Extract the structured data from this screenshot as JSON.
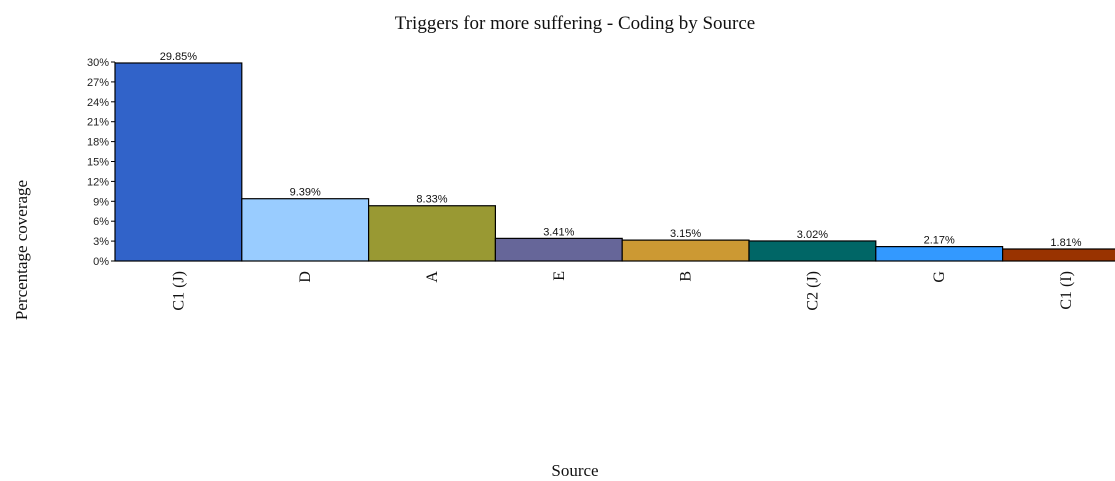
{
  "chart_data": {
    "type": "bar",
    "title": "Triggers for more suffering - Coding by Source",
    "xlabel": "Source",
    "ylabel": "Percentage coverage",
    "ylim": [
      0,
      30
    ],
    "yticks": [
      "0%",
      "3%",
      "6%",
      "9%",
      "12%",
      "15%",
      "18%",
      "21%",
      "24%",
      "27%",
      "30%"
    ],
    "grid": false,
    "categories": [
      "C1 (J)",
      "D",
      "A",
      "E",
      "B",
      "C2 (J)",
      "G",
      "C1 (I)"
    ],
    "values": [
      29.85,
      9.39,
      8.33,
      3.41,
      3.15,
      3.02,
      2.17,
      1.81
    ],
    "value_labels": [
      "29.85%",
      "9.39%",
      "8.33%",
      "3.41%",
      "3.15%",
      "3.02%",
      "2.17%",
      "1.81%"
    ],
    "colors": [
      "#3163c9",
      "#99ccff",
      "#999933",
      "#666699",
      "#cc9933",
      "#006666",
      "#3399ff",
      "#993300"
    ]
  }
}
